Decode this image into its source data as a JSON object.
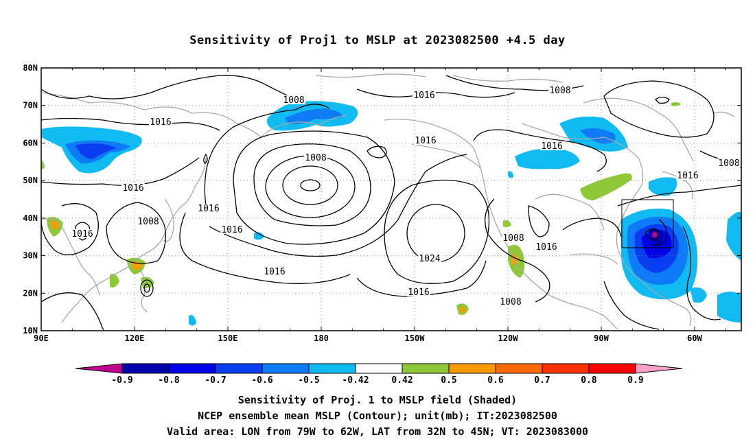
{
  "title": "Sensitivity of Proj1 to MSLP at 2023082500 +4.5 day",
  "captions": [
    "Sensitivity of Proj. 1 to MSLP field (Shaded)",
    "NCEP ensemble mean MSLP (Contour); unit(mb); IT:2023082500",
    "Valid area: LON from 79W to 62W, LAT from 32N to 45N; VT: 2023083000"
  ],
  "map": {
    "lat_labels": [
      "80N",
      "70N",
      "60N",
      "50N",
      "40N",
      "30N",
      "20N",
      "10N"
    ],
    "lon_labels": [
      "90E",
      "120E",
      "150E",
      "180",
      "150W",
      "120W",
      "90W",
      "60W"
    ],
    "lat_range": [
      10,
      80
    ],
    "lon_range": [
      90,
      315
    ],
    "contour_labels": [
      "1008",
      "1016",
      "1016",
      "1008",
      "1016",
      "1008",
      "1016",
      "1016",
      "1008",
      "1016",
      "1016",
      "1016",
      "1024",
      "1016",
      "1008",
      "1016",
      "1008",
      "1016",
      "1016",
      "1008"
    ]
  },
  "colorbar": {
    "labels": [
      "-0.9",
      "-0.8",
      "-0.7",
      "-0.6",
      "-0.5",
      "-0.42",
      "0.42",
      "0.5",
      "0.6",
      "0.7",
      "0.8",
      "0.9"
    ],
    "colors": [
      "#c0008c",
      "#0000a8",
      "#0000e6",
      "#0a3cf0",
      "#0f7af5",
      "#10baf2",
      "#ffffff",
      "#8fc93a",
      "#ff9a00",
      "#ff6a00",
      "#ff3000",
      "#ff0000",
      "#f7a0c8"
    ]
  }
}
